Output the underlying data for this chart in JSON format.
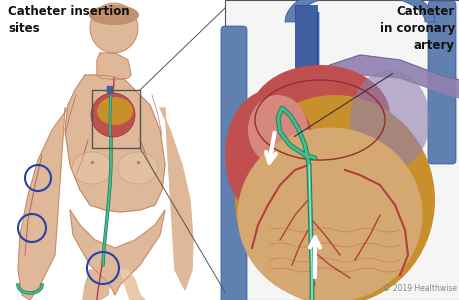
{
  "bg_color": "#ffffff",
  "title_left": "Catheter insertion\nsites",
  "title_right": "Catheter\nin coronary\nartery",
  "copyright": "© 2019 Healthwise",
  "skin_fill": "#deb898",
  "skin_light": "#e8c9a8",
  "skin_outline": "#c08060",
  "vein_red": "#b04040",
  "vein_teal_outer": "#2a8060",
  "vein_teal_inner": "#40c090",
  "vein_blue_dark": "#4060a0",
  "vein_blue_light": "#7090c0",
  "heart_red_upper": "#c05050",
  "heart_orange": "#c8902a",
  "heart_tan": "#d4a870",
  "heart_dark_red": "#903030",
  "heart_light_pink": "#e0a090",
  "vessel_purple": "#9080b0",
  "vessel_blue_left": "#6080b0",
  "circle_blue": "#2244aa",
  "box_gray": "#555555",
  "arrow_white": "#ffffff",
  "copyright_gray": "#888888",
  "text_black": "#111111"
}
